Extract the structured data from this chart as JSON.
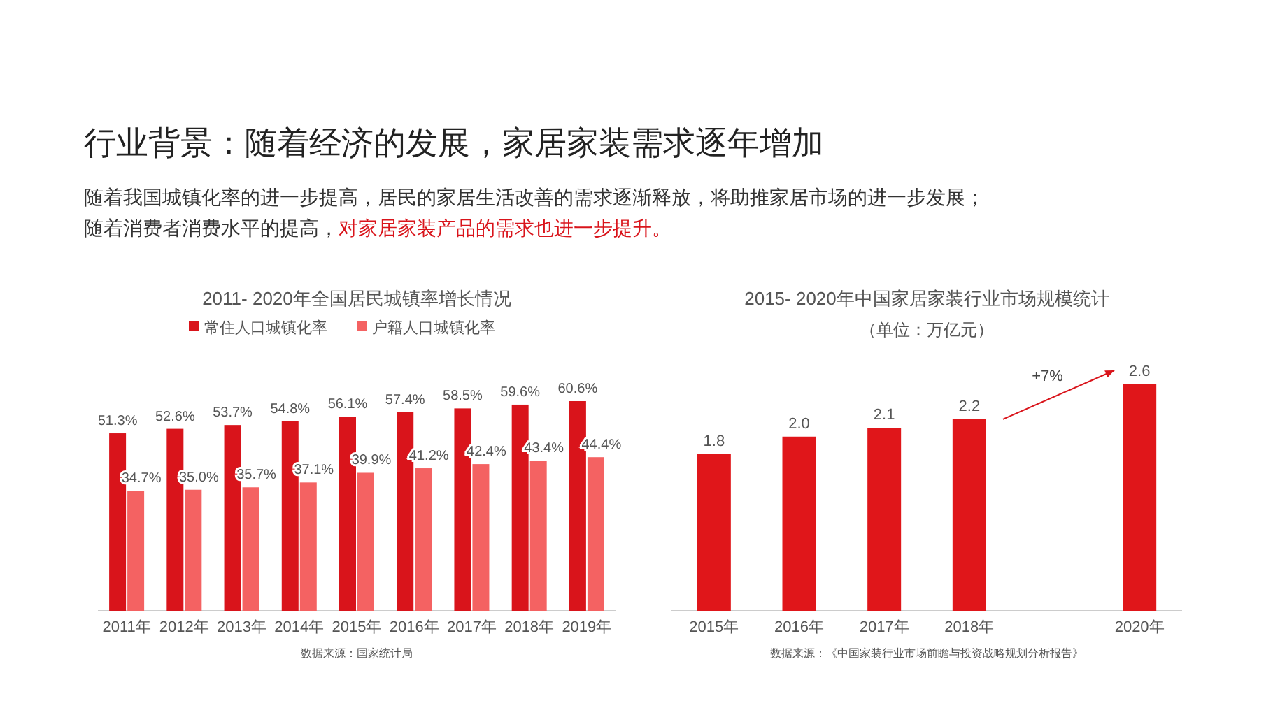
{
  "chart_data": [
    {
      "type": "other",
      "title": "行业背景：随着经济的发展，家居家装需求逐年增加",
      "annotations": [
        "随着我国城镇化率的进一步提高，居民的家居生活改善的需求逐渐释放，将助推家居市场的进一步发展；",
        "随着消费者消费水平的提高，",
        "对家居家装产品的需求也进一步提升。"
      ]
    },
    {
      "type": "bar",
      "title": "2011- 2020年全国居民城镇率增长情况",
      "categories": [
        "2011年",
        "2012年",
        "2013年",
        "2014年",
        "2015年",
        "2016年",
        "2017年",
        "2018年",
        "2019年"
      ],
      "legend": "top",
      "series": [
        {
          "name": "常住人口城镇化率",
          "color": "#d9141b",
          "values": [
            51.3,
            52.6,
            53.7,
            54.8,
            56.1,
            57.4,
            58.5,
            59.6,
            60.6
          ],
          "value_labels": [
            "51.3%",
            "52.6%",
            "53.7%",
            "54.8%",
            "56.1%",
            "57.4%",
            "58.5%",
            "59.6%",
            "60.6%"
          ]
        },
        {
          "name": "户籍人口城镇化率",
          "color": "#f46262",
          "values": [
            34.7,
            35.0,
            35.7,
            37.1,
            39.9,
            41.2,
            42.4,
            43.4,
            44.4
          ],
          "value_labels": [
            "34.7%",
            "35.0%",
            "35.7%",
            "37.1%",
            "39.9%",
            "41.2%",
            "42.4%",
            "43.4%",
            "44.4%"
          ]
        }
      ],
      "annotations": [
        "数据来源：国家统计局"
      ]
    },
    {
      "type": "bar",
      "title": "2015- 2020年中国家居家装行业市场规模统计",
      "subtitle": "（单位：万亿元）",
      "categories": [
        "2015年",
        "2016年",
        "2017年",
        "2018年",
        null,
        "2020年"
      ],
      "series": [
        {
          "color": "#e0161a",
          "values": [
            1.8,
            2.0,
            2.1,
            2.2,
            null,
            2.6
          ],
          "value_labels": [
            "1.8",
            "2.0",
            "2.1",
            "2.2",
            null,
            "2.6"
          ]
        }
      ],
      "annotations": [
        "+7%",
        "数据来源：《中国家装行业市场前瞻与投资战略规划分析报告》"
      ]
    }
  ]
}
